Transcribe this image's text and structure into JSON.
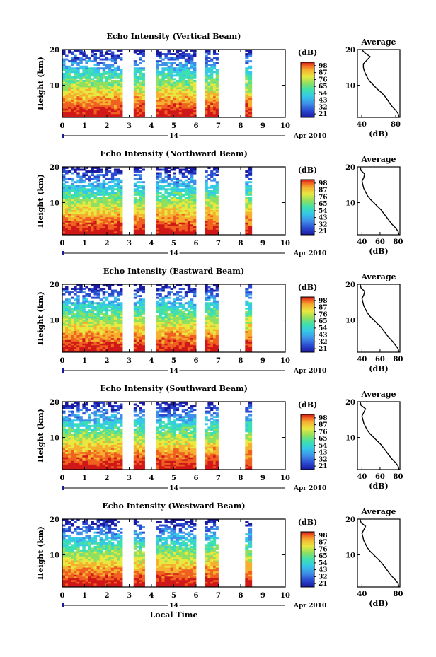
{
  "chart_data": [
    {
      "type": "heatmap",
      "title": "Echo Intensity (Vertical Beam)",
      "ylabel": "Height (km)",
      "xlabel": "",
      "x_ticks": [
        "0",
        "1",
        "2",
        "3",
        "4",
        "5",
        "6",
        "7",
        "8",
        "9",
        "10"
      ],
      "y_ticks": [
        "20",
        "10"
      ],
      "xlim": [
        0,
        10
      ],
      "ylim": [
        1,
        20
      ],
      "date_label": "Apr 2010",
      "day_label": "14",
      "colorbar": {
        "unit": "(dB)",
        "ticks": [
          "98",
          "87",
          "76",
          "65",
          "54",
          "43",
          "32",
          "21"
        ],
        "range": [
          21,
          98
        ]
      },
      "data_segments_hours": [
        [
          0,
          2.7
        ],
        [
          3.2,
          3.7
        ],
        [
          4.2,
          6.0
        ],
        [
          6.4,
          7.0
        ],
        [
          8.2,
          8.5
        ]
      ],
      "average_profile": {
        "title": "Average",
        "xlabel": "(dB)",
        "x_ticks": [
          "40",
          "80"
        ],
        "y_ticks": [
          "20",
          "10"
        ],
        "xlim": [
          35,
          85
        ],
        "height_km": [
          1,
          2,
          3,
          4,
          5,
          6,
          7,
          8,
          9,
          10,
          11,
          12,
          13,
          14,
          15,
          16,
          17,
          18,
          19,
          20
        ],
        "db": [
          84,
          83,
          80,
          76,
          73,
          70,
          67,
          63,
          58,
          54,
          50,
          47,
          45,
          43,
          42,
          42,
          46,
          50,
          44,
          40
        ]
      }
    },
    {
      "type": "heatmap",
      "title": "Echo Intensity (Northward Beam)",
      "ylabel": "Height (km)",
      "xlabel": "",
      "x_ticks": [
        "0",
        "1",
        "2",
        "3",
        "4",
        "5",
        "6",
        "7",
        "8",
        "9",
        "10"
      ],
      "y_ticks": [
        "20",
        "10"
      ],
      "xlim": [
        0,
        10
      ],
      "ylim": [
        1,
        20
      ],
      "date_label": "Apr 2010",
      "day_label": "14",
      "colorbar": {
        "unit": "(dB)",
        "ticks": [
          "98",
          "87",
          "76",
          "65",
          "54",
          "43",
          "32",
          "21"
        ],
        "range": [
          21,
          98
        ]
      },
      "data_segments_hours": [
        [
          0,
          2.7
        ],
        [
          3.2,
          3.7
        ],
        [
          4.2,
          6.0
        ],
        [
          6.4,
          7.0
        ],
        [
          8.2,
          8.5
        ]
      ],
      "average_profile": {
        "title": "Average",
        "xlabel": "(dB)",
        "x_ticks": [
          "40",
          "60",
          "80"
        ],
        "y_ticks": [
          "20",
          "10"
        ],
        "xlim": [
          35,
          82
        ],
        "height_km": [
          1,
          2,
          3,
          4,
          5,
          6,
          7,
          8,
          9,
          10,
          11,
          12,
          13,
          14,
          15,
          16,
          17,
          18,
          19,
          20
        ],
        "db": [
          81,
          80,
          77,
          73,
          70,
          67,
          64,
          61,
          57,
          53,
          49,
          46,
          44,
          42,
          41,
          40,
          42,
          43,
          39,
          38
        ]
      }
    },
    {
      "type": "heatmap",
      "title": "Echo Intensity (Eastward Beam)",
      "ylabel": "Height (km)",
      "xlabel": "",
      "x_ticks": [
        "0",
        "1",
        "2",
        "3",
        "4",
        "5",
        "6",
        "7",
        "8",
        "9",
        "10"
      ],
      "y_ticks": [
        "20",
        "10"
      ],
      "xlim": [
        0,
        10
      ],
      "ylim": [
        1,
        20
      ],
      "date_label": "Apr 2010",
      "day_label": "14",
      "colorbar": {
        "unit": "(dB)",
        "ticks": [
          "98",
          "87",
          "76",
          "65",
          "54",
          "43",
          "32",
          "21"
        ],
        "range": [
          21,
          98
        ]
      },
      "data_segments_hours": [
        [
          0,
          2.7
        ],
        [
          3.2,
          3.7
        ],
        [
          4.2,
          6.0
        ],
        [
          6.4,
          7.0
        ],
        [
          8.2,
          8.5
        ]
      ],
      "average_profile": {
        "title": "Average",
        "xlabel": "(dB)",
        "x_ticks": [
          "40",
          "60",
          "80"
        ],
        "y_ticks": [
          "20",
          "10"
        ],
        "xlim": [
          35,
          82
        ],
        "height_km": [
          1,
          2,
          3,
          4,
          5,
          6,
          7,
          8,
          9,
          10,
          11,
          12,
          13,
          14,
          15,
          16,
          17,
          18,
          19,
          20
        ],
        "db": [
          81,
          80,
          77,
          74,
          70,
          67,
          64,
          61,
          57,
          53,
          49,
          46,
          44,
          42,
          41,
          40,
          42,
          43,
          39,
          38
        ]
      }
    },
    {
      "type": "heatmap",
      "title": "Echo Intensity (Southward Beam)",
      "ylabel": "Height (km)",
      "xlabel": "",
      "x_ticks": [
        "0",
        "1",
        "2",
        "3",
        "4",
        "5",
        "6",
        "7",
        "8",
        "9",
        "10"
      ],
      "y_ticks": [
        "20",
        "10"
      ],
      "xlim": [
        0,
        10
      ],
      "ylim": [
        1,
        20
      ],
      "date_label": "Apr 2010",
      "day_label": "14",
      "colorbar": {
        "unit": "(dB)",
        "ticks": [
          "98",
          "87",
          "76",
          "65",
          "54",
          "43",
          "32",
          "21"
        ],
        "range": [
          21,
          98
        ]
      },
      "data_segments_hours": [
        [
          0,
          2.7
        ],
        [
          3.2,
          3.7
        ],
        [
          4.2,
          6.0
        ],
        [
          6.4,
          7.0
        ],
        [
          8.2,
          8.5
        ]
      ],
      "average_profile": {
        "title": "Average",
        "xlabel": "(dB)",
        "x_ticks": [
          "40",
          "60",
          "80"
        ],
        "y_ticks": [
          "20",
          "10"
        ],
        "xlim": [
          35,
          82
        ],
        "height_km": [
          1,
          2,
          3,
          4,
          5,
          6,
          7,
          8,
          9,
          10,
          11,
          12,
          13,
          14,
          15,
          16,
          17,
          18,
          19,
          20
        ],
        "db": [
          81,
          80,
          77,
          73,
          70,
          67,
          64,
          61,
          57,
          53,
          49,
          46,
          44,
          42,
          41,
          40,
          42,
          44,
          39,
          38
        ]
      }
    },
    {
      "type": "heatmap",
      "title": "Echo Intensity (Westward Beam)",
      "ylabel": "Height (km)",
      "xlabel": "Local Time",
      "x_ticks": [
        "0",
        "1",
        "2",
        "3",
        "4",
        "5",
        "6",
        "7",
        "8",
        "9",
        "10"
      ],
      "y_ticks": [
        "20",
        "10"
      ],
      "xlim": [
        0,
        10
      ],
      "ylim": [
        1,
        20
      ],
      "date_label": "Apr 2010",
      "day_label": "14",
      "colorbar": {
        "unit": "(dB)",
        "ticks": [
          "98",
          "87",
          "76",
          "65",
          "54",
          "43",
          "32",
          "21"
        ],
        "range": [
          21,
          98
        ]
      },
      "data_segments_hours": [
        [
          0,
          2.7
        ],
        [
          3.2,
          3.7
        ],
        [
          4.2,
          6.0
        ],
        [
          6.4,
          7.0
        ],
        [
          8.2,
          8.5
        ]
      ],
      "average_profile": {
        "title": "Average",
        "xlabel": "(dB)",
        "x_ticks": [
          "40",
          "80"
        ],
        "y_ticks": [
          "20",
          "10"
        ],
        "xlim": [
          35,
          82
        ],
        "height_km": [
          1,
          2,
          3,
          4,
          5,
          6,
          7,
          8,
          9,
          10,
          11,
          12,
          13,
          14,
          15,
          16,
          17,
          18,
          19,
          20
        ],
        "db": [
          81,
          80,
          77,
          73,
          70,
          67,
          64,
          61,
          57,
          53,
          49,
          46,
          44,
          42,
          41,
          40,
          42,
          44,
          39,
          38
        ]
      }
    }
  ],
  "colors": {
    "colormap": [
      "#1a1aa0",
      "#2a4ad0",
      "#3f8fe8",
      "#35c8e8",
      "#3ee0b0",
      "#8fe060",
      "#e8e840",
      "#f5b030",
      "#f06020",
      "#d01818"
    ]
  }
}
